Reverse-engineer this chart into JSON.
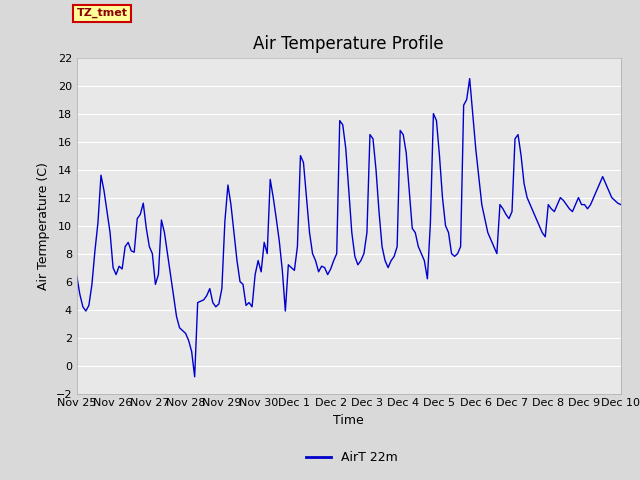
{
  "title": "Air Temperature Profile",
  "xlabel": "Time",
  "ylabel": "Air Termperature (C)",
  "ylim": [
    -2,
    22
  ],
  "yticks": [
    -2,
    0,
    2,
    4,
    6,
    8,
    10,
    12,
    14,
    16,
    18,
    20,
    22
  ],
  "line_color": "#0000cc",
  "bg_color": "#d9d9d9",
  "plot_bg_color": "#e8e8e8",
  "legend_label": "AirT 22m",
  "tz_label": "TZ_tmet",
  "x_tick_positions": [
    0,
    1,
    2,
    3,
    4,
    5,
    6,
    7,
    8,
    9,
    10,
    11,
    12,
    13,
    14,
    15
  ],
  "x_tick_labels": [
    "Nov 25",
    "Nov 26",
    "Nov 27",
    "Nov 28",
    "Nov 29",
    "Nov 30",
    "Dec 1",
    "Dec 2",
    "Dec 3",
    "Dec 4",
    "Dec 5",
    "Dec 6",
    "Dec 7",
    "Dec 8",
    "Dec 9",
    "Dec 10"
  ],
  "time_data": [
    0.0,
    0.083,
    0.167,
    0.25,
    0.333,
    0.417,
    0.5,
    0.583,
    0.667,
    0.75,
    0.833,
    0.917,
    1.0,
    1.083,
    1.167,
    1.25,
    1.333,
    1.417,
    1.5,
    1.583,
    1.667,
    1.75,
    1.833,
    1.917,
    2.0,
    2.083,
    2.167,
    2.25,
    2.333,
    2.417,
    2.5,
    2.583,
    2.667,
    2.75,
    2.833,
    2.917,
    3.0,
    3.083,
    3.167,
    3.25,
    3.333,
    3.417,
    3.5,
    3.583,
    3.667,
    3.75,
    3.833,
    3.917,
    4.0,
    4.083,
    4.167,
    4.25,
    4.333,
    4.417,
    4.5,
    4.583,
    4.667,
    4.75,
    4.833,
    4.917,
    5.0,
    5.083,
    5.167,
    5.25,
    5.333,
    5.417,
    5.5,
    5.583,
    5.667,
    5.75,
    5.833,
    5.917,
    6.0,
    6.083,
    6.167,
    6.25,
    6.333,
    6.417,
    6.5,
    6.583,
    6.667,
    6.75,
    6.833,
    6.917,
    7.0,
    7.083,
    7.167,
    7.25,
    7.333,
    7.417,
    7.5,
    7.583,
    7.667,
    7.75,
    7.833,
    7.917,
    8.0,
    8.083,
    8.167,
    8.25,
    8.333,
    8.417,
    8.5,
    8.583,
    8.667,
    8.75,
    8.833,
    8.917,
    9.0,
    9.083,
    9.167,
    9.25,
    9.333,
    9.417,
    9.5,
    9.583,
    9.667,
    9.75,
    9.833,
    9.917,
    10.0,
    10.083,
    10.167,
    10.25,
    10.333,
    10.417,
    10.5,
    10.583,
    10.667,
    10.75,
    10.833,
    10.917,
    11.0,
    11.083,
    11.167,
    11.25,
    11.333,
    11.417,
    11.5,
    11.583,
    11.667,
    11.75,
    11.833,
    11.917,
    12.0,
    12.083,
    12.167,
    12.25,
    12.333,
    12.417,
    12.5,
    12.583,
    12.667,
    12.75,
    12.833,
    12.917,
    13.0,
    13.083,
    13.167,
    13.25,
    13.333,
    13.417,
    13.5,
    13.583,
    13.667,
    13.75,
    13.833,
    13.917,
    14.0,
    14.083,
    14.167,
    14.25,
    14.333,
    14.417,
    14.5,
    14.583,
    14.667,
    14.75,
    14.833,
    14.917,
    15.0
  ],
  "temp_data": [
    6.4,
    5.1,
    4.2,
    3.9,
    4.3,
    5.8,
    8.2,
    10.2,
    13.6,
    12.5,
    11.0,
    9.5,
    7.0,
    6.5,
    7.1,
    6.9,
    8.5,
    8.8,
    8.2,
    8.1,
    10.5,
    10.8,
    11.6,
    9.8,
    8.5,
    8.0,
    5.8,
    6.5,
    10.4,
    9.5,
    8.0,
    6.5,
    5.0,
    3.5,
    2.7,
    2.5,
    2.3,
    1.8,
    1.0,
    -0.8,
    4.5,
    4.6,
    4.7,
    5.0,
    5.5,
    4.5,
    4.2,
    4.4,
    5.5,
    10.3,
    12.9,
    11.5,
    9.5,
    7.5,
    6.0,
    5.8,
    4.3,
    4.5,
    4.2,
    6.5,
    7.5,
    6.7,
    8.8,
    8.0,
    13.3,
    12.0,
    10.5,
    8.9,
    6.8,
    3.9,
    7.2,
    7.0,
    6.8,
    8.5,
    15.0,
    14.5,
    12.0,
    9.5,
    8.0,
    7.5,
    6.7,
    7.1,
    7.0,
    6.5,
    6.9,
    7.5,
    8.0,
    17.5,
    17.2,
    15.5,
    12.5,
    9.5,
    7.8,
    7.2,
    7.5,
    8.0,
    9.5,
    16.5,
    16.2,
    14.0,
    11.0,
    8.5,
    7.5,
    7.0,
    7.5,
    7.8,
    8.5,
    16.8,
    16.5,
    15.2,
    12.5,
    9.8,
    9.5,
    8.5,
    8.0,
    7.5,
    6.2,
    10.2,
    18.0,
    17.5,
    15.0,
    12.0,
    10.0,
    9.5,
    8.0,
    7.8,
    8.0,
    8.5,
    18.6,
    19.0,
    20.5,
    18.0,
    15.5,
    13.5,
    11.5,
    10.5,
    9.5,
    9.0,
    8.5,
    8.0,
    11.5,
    11.2,
    10.8,
    10.5,
    11.0,
    16.2,
    16.5,
    15.0,
    13.0,
    12.0,
    11.5,
    11.0,
    10.5,
    10.0,
    9.5,
    9.2,
    11.5,
    11.2,
    11.0,
    11.5,
    12.0,
    11.8,
    11.5,
    11.2,
    11.0,
    11.5,
    12.0,
    11.5,
    11.5,
    11.2,
    11.5,
    12.0,
    12.5,
    13.0,
    13.5,
    13.0,
    12.5,
    12.0,
    11.8,
    11.6,
    11.5
  ]
}
